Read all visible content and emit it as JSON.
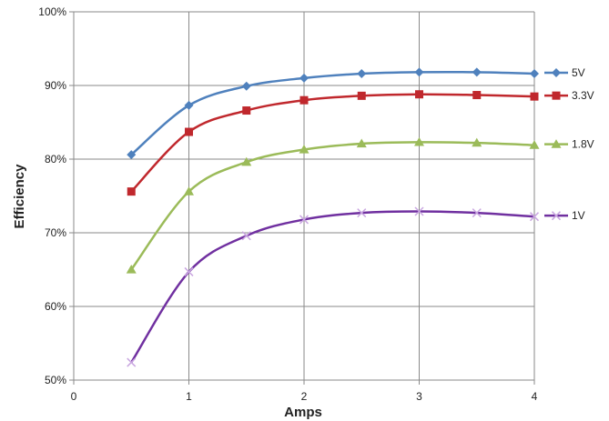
{
  "chart_data": {
    "type": "line",
    "title": "",
    "xlabel": "Amps",
    "ylabel": "Efficiency",
    "xlim": [
      0,
      4
    ],
    "ylim": [
      50,
      100
    ],
    "x_ticks": [
      0,
      1,
      2,
      3,
      4
    ],
    "y_ticks": [
      50,
      60,
      70,
      80,
      90,
      100
    ],
    "x_tick_labels": [
      "0",
      "1",
      "2",
      "3",
      "4"
    ],
    "y_tick_labels": [
      "50%",
      "60%",
      "70%",
      "80%",
      "90%",
      "100%"
    ],
    "grid": true,
    "legend_placement": "right",
    "x": [
      0.5,
      1,
      1.5,
      2,
      2.5,
      3,
      3.5,
      4
    ],
    "series": [
      {
        "name": "5V",
        "color": "#4F81BD",
        "marker": "diamond",
        "values": [
          80.6,
          87.3,
          89.9,
          91.0,
          91.6,
          91.8,
          91.8,
          91.6
        ]
      },
      {
        "name": "3.3V",
        "color": "#C0282D",
        "marker": "square",
        "values": [
          75.6,
          83.7,
          86.6,
          88.0,
          88.6,
          88.8,
          88.7,
          88.5
        ]
      },
      {
        "name": "1.8V",
        "color": "#9BBB59",
        "marker": "triangle",
        "values": [
          65.0,
          75.6,
          79.6,
          81.3,
          82.1,
          82.3,
          82.2,
          81.9
        ]
      },
      {
        "name": "1V",
        "color": "#7030A0",
        "marker": "x",
        "values": [
          52.4,
          64.7,
          69.6,
          71.8,
          72.7,
          72.9,
          72.7,
          72.2
        ]
      }
    ]
  }
}
